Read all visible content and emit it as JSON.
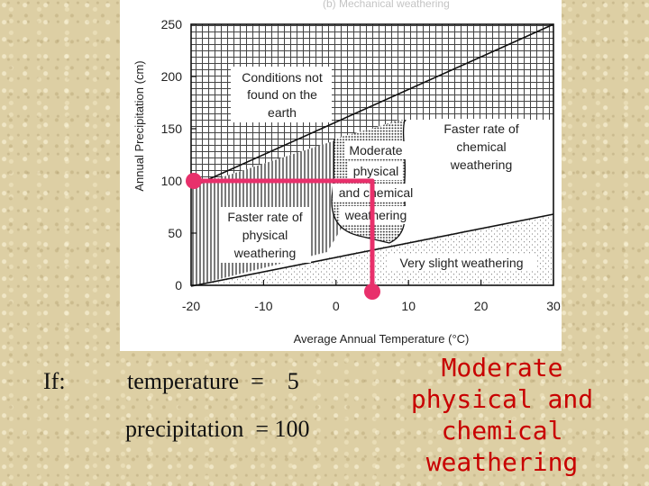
{
  "figure": {
    "top_caption": "(b) Mechanical weathering",
    "y_axis_title": "Annual Precipitation (cm)",
    "x_axis_title": "Average Annual Temperature (°C)",
    "y_ticks": [
      "250",
      "200",
      "150",
      "100",
      "50",
      "0"
    ],
    "x_ticks": [
      "-20",
      "-10",
      "0",
      "10",
      "20",
      "30"
    ],
    "y_range": [
      0,
      250
    ],
    "x_range": [
      -20,
      30
    ],
    "regions": {
      "not_found": [
        "Conditions not",
        "found on the",
        "earth"
      ],
      "moderate": [
        "Moderate",
        "physical",
        "and chemical",
        "weathering"
      ],
      "chemical": [
        "Faster rate of",
        "chemical",
        "weathering"
      ],
      "physical": [
        "Faster rate of",
        "physical",
        "weathering"
      ],
      "slight": "Very slight weathering"
    },
    "marker": {
      "temperature": 5,
      "precipitation": 100,
      "color": "#e8306b"
    }
  },
  "labels": {
    "if": "If:",
    "temperature": "temperature  =    5",
    "precipitation": "precipitation  = 100"
  },
  "answer": [
    "Moderate",
    "physical and",
    "chemical",
    "weathering"
  ],
  "colors": {
    "answer": "#c80000",
    "marker": "#e8306b",
    "background": "#ddcfa4"
  }
}
